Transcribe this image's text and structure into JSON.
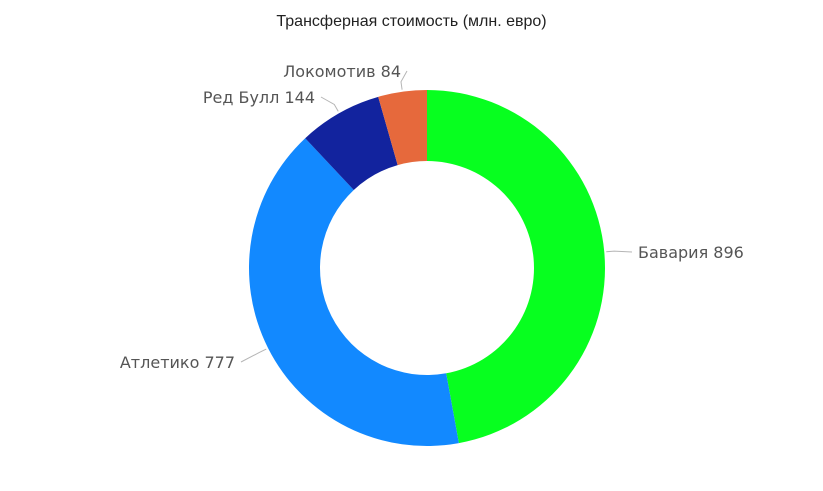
{
  "chart_data": {
    "type": "pie",
    "variant": "donut",
    "title": "Трансферная стоимость (млн. евро)",
    "legend": "none",
    "slices": [
      {
        "label": "Бавария",
        "value": 896,
        "color": "#07FF1F",
        "label_text": "Бавария 896"
      },
      {
        "label": "Атлетико",
        "value": 777,
        "color": "#1289FF",
        "label_text": "Атлетико 777"
      },
      {
        "label": "Ред Булл",
        "value": 144,
        "color": "#12239E",
        "label_text": "Ред Булл 144"
      },
      {
        "label": "Локомотив",
        "value": 84,
        "color": "#E6693C",
        "label_text": "Локомотив 84"
      }
    ]
  }
}
